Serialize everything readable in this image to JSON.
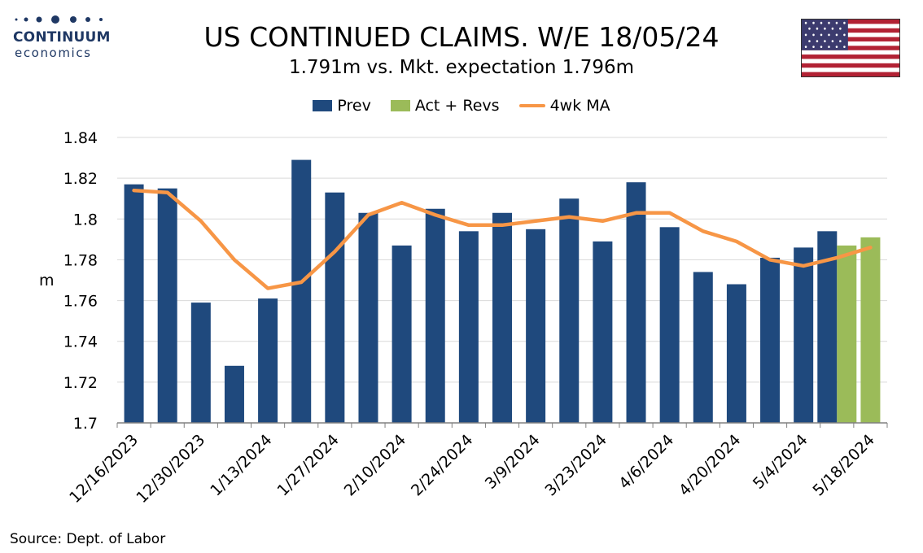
{
  "logo": {
    "name": "CONTINUUM",
    "sub": "economics"
  },
  "chart_data": {
    "type": "bar",
    "title": "US CONTINUED CLAIMS. W/E 18/05/24",
    "subtitle": "1.791m vs. Mkt. expectation 1.796m",
    "ylabel": "m",
    "ylim": [
      1.7,
      1.84
    ],
    "yticks": [
      1.7,
      1.72,
      1.74,
      1.76,
      1.78,
      1.8,
      1.82,
      1.84
    ],
    "ytick_labels": [
      "1.7",
      "1.72",
      "1.74",
      "1.76",
      "1.78",
      "1.8",
      "1.82",
      "1.84"
    ],
    "legend_position": "top-center",
    "grid": true,
    "dates": [
      "12/16/2023",
      "12/23/2023",
      "12/30/2023",
      "1/6/2024",
      "1/13/2024",
      "1/20/2024",
      "1/27/2024",
      "2/3/2024",
      "2/10/2024",
      "2/17/2024",
      "2/24/2024",
      "3/2/2024",
      "3/9/2024",
      "3/16/2024",
      "3/23/2024",
      "3/30/2024",
      "4/6/2024",
      "4/13/2024",
      "4/20/2024",
      "4/27/2024",
      "5/4/2024",
      "5/11/2024",
      "5/18/2024"
    ],
    "xtick_labels": [
      "12/16/2023",
      "12/30/2023",
      "1/13/2024",
      "1/27/2024",
      "2/10/2024",
      "2/24/2024",
      "3/9/2024",
      "3/23/2024",
      "4/6/2024",
      "4/20/2024",
      "5/4/2024",
      "5/18/2024"
    ],
    "series": [
      {
        "name": "Prev",
        "type": "bar",
        "color": "#1f497d",
        "values": [
          1.817,
          1.815,
          1.759,
          1.728,
          1.761,
          1.829,
          1.813,
          1.803,
          1.787,
          1.805,
          1.794,
          1.803,
          1.795,
          1.81,
          1.789,
          1.818,
          1.796,
          1.774,
          1.768,
          1.781,
          1.786,
          1.794,
          null
        ]
      },
      {
        "name": "Act + Revs",
        "type": "bar",
        "color": "#9bbb59",
        "values": [
          null,
          null,
          null,
          null,
          null,
          null,
          null,
          null,
          null,
          null,
          null,
          null,
          null,
          null,
          null,
          null,
          null,
          null,
          null,
          null,
          null,
          1.787,
          1.791
        ]
      },
      {
        "name": "4wk MA",
        "type": "line",
        "color": "#f79646",
        "values": [
          1.814,
          1.813,
          1.799,
          1.78,
          1.766,
          1.769,
          1.784,
          1.802,
          1.808,
          1.802,
          1.797,
          1.797,
          1.799,
          1.801,
          1.799,
          1.803,
          1.803,
          1.794,
          1.789,
          1.78,
          1.777,
          1.781,
          1.786
        ]
      }
    ]
  },
  "source": "Source: Dept. of Labor"
}
